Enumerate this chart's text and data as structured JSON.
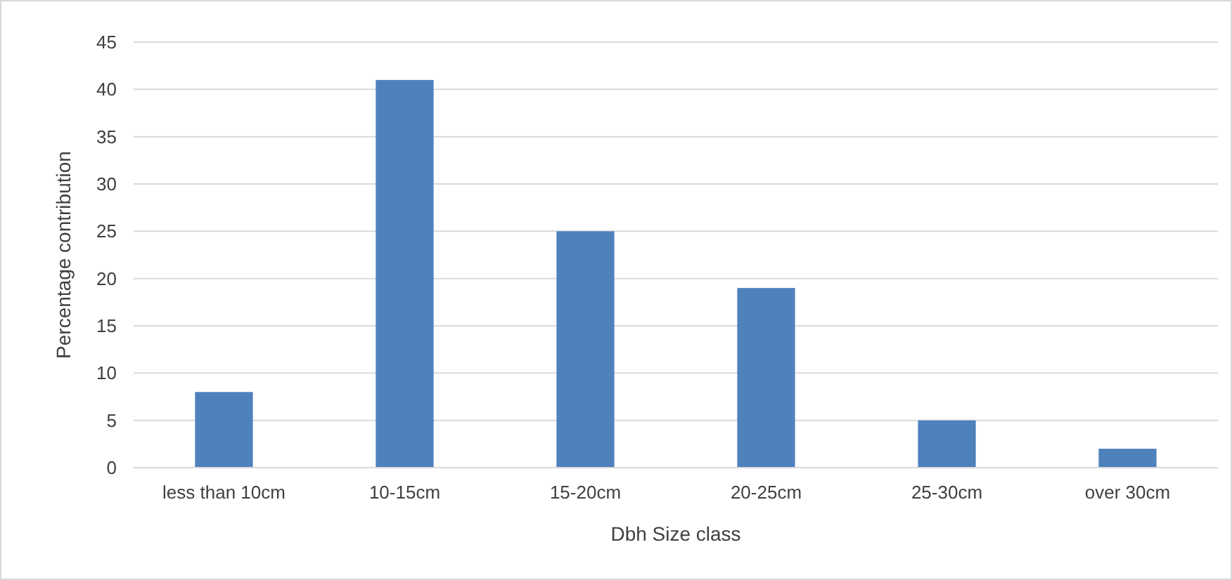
{
  "chart_data": {
    "type": "bar",
    "xlabel": "Dbh Size class",
    "ylabel": "Percentage contribution",
    "categories": [
      "less than 10cm",
      "10-15cm",
      "15-20cm",
      "20-25cm",
      "25-30cm",
      "over 30cm"
    ],
    "values": [
      8,
      41,
      25,
      19,
      5,
      2
    ],
    "color": "#4f81bd",
    "ylim": [
      0,
      45
    ],
    "yticks": [
      0,
      5,
      10,
      15,
      20,
      25,
      30,
      35,
      40,
      45
    ],
    "grid": "y"
  }
}
